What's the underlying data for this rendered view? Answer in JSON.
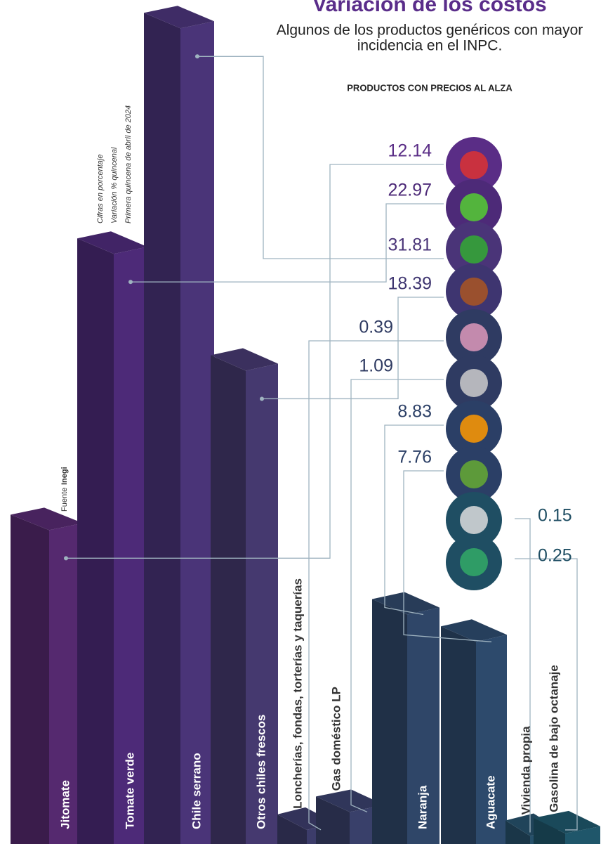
{
  "chart_data": {
    "type": "bar3d",
    "title": "Variación de los costos",
    "subtitle": [
      "Algunos de los productos genéricos con mayor",
      "incidencia en el INPC."
    ],
    "header": "PRODUCTOS CON PRECIOS AL ALZA",
    "notes": [
      "Cifras en porcentaje",
      "Variación % quincenal",
      "Primera quincena de abril de 2024"
    ],
    "source_label": "Fuente",
    "source": "Inegi",
    "categories": [
      "Jitomate",
      "Tomate verde",
      "Chile serrano",
      "Otros chiles frescos",
      "Loncherías, fondas, torterías y taquerías",
      "Gas doméstico LP",
      "Naranja",
      "Aguacate",
      "Vivienda propia",
      "Gasolina de bajo octanaje"
    ],
    "values": [
      12.14,
      22.97,
      31.81,
      18.39,
      0.39,
      1.09,
      8.83,
      7.76,
      0.15,
      0.25
    ],
    "colors": [
      "#55296f",
      "#4d2a78",
      "#4a3478",
      "#45396f",
      "#3c3c6a",
      "#39406a",
      "#2f4668",
      "#2d4a6c",
      "#26506a",
      "#1f566a"
    ]
  }
}
